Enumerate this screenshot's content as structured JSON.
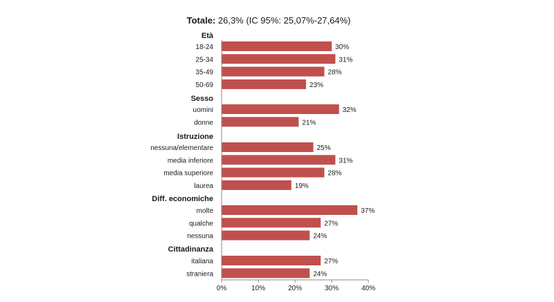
{
  "chart_data": {
    "type": "bar",
    "orientation": "horizontal",
    "title": {
      "bold": "Totale:",
      "rest": " 26,3% (IC 95%: 25,07%-27,64%)"
    },
    "xlim": [
      0,
      40
    ],
    "xticks": [
      "0%",
      "10%",
      "20%",
      "30%",
      "40%"
    ],
    "bar_color": "#c0504d",
    "groups": [
      {
        "name": "Età",
        "items": [
          {
            "label": "18-24",
            "value": 30,
            "value_label": "30%"
          },
          {
            "label": "25-34",
            "value": 31,
            "value_label": "31%"
          },
          {
            "label": "35-49",
            "value": 28,
            "value_label": "28%"
          },
          {
            "label": "50-69",
            "value": 23,
            "value_label": "23%"
          }
        ]
      },
      {
        "name": "Sesso",
        "items": [
          {
            "label": "uomini",
            "value": 32,
            "value_label": "32%"
          },
          {
            "label": "donne",
            "value": 21,
            "value_label": "21%"
          }
        ]
      },
      {
        "name": "Istruzione",
        "items": [
          {
            "label": "nessuna/elementare",
            "value": 25,
            "value_label": "25%"
          },
          {
            "label": "media inferiore",
            "value": 31,
            "value_label": "31%"
          },
          {
            "label": "media superiore",
            "value": 28,
            "value_label": "28%"
          },
          {
            "label": "laurea",
            "value": 19,
            "value_label": "19%"
          }
        ]
      },
      {
        "name": "Diff. economiche",
        "items": [
          {
            "label": "molte",
            "value": 37,
            "value_label": "37%"
          },
          {
            "label": "qualche",
            "value": 27,
            "value_label": "27%"
          },
          {
            "label": "nessuna",
            "value": 24,
            "value_label": "24%"
          }
        ]
      },
      {
        "name": "Cittadinanza",
        "items": [
          {
            "label": "italiana",
            "value": 27,
            "value_label": "27%"
          },
          {
            "label": "straniera",
            "value": 24,
            "value_label": "24%"
          }
        ]
      }
    ]
  }
}
